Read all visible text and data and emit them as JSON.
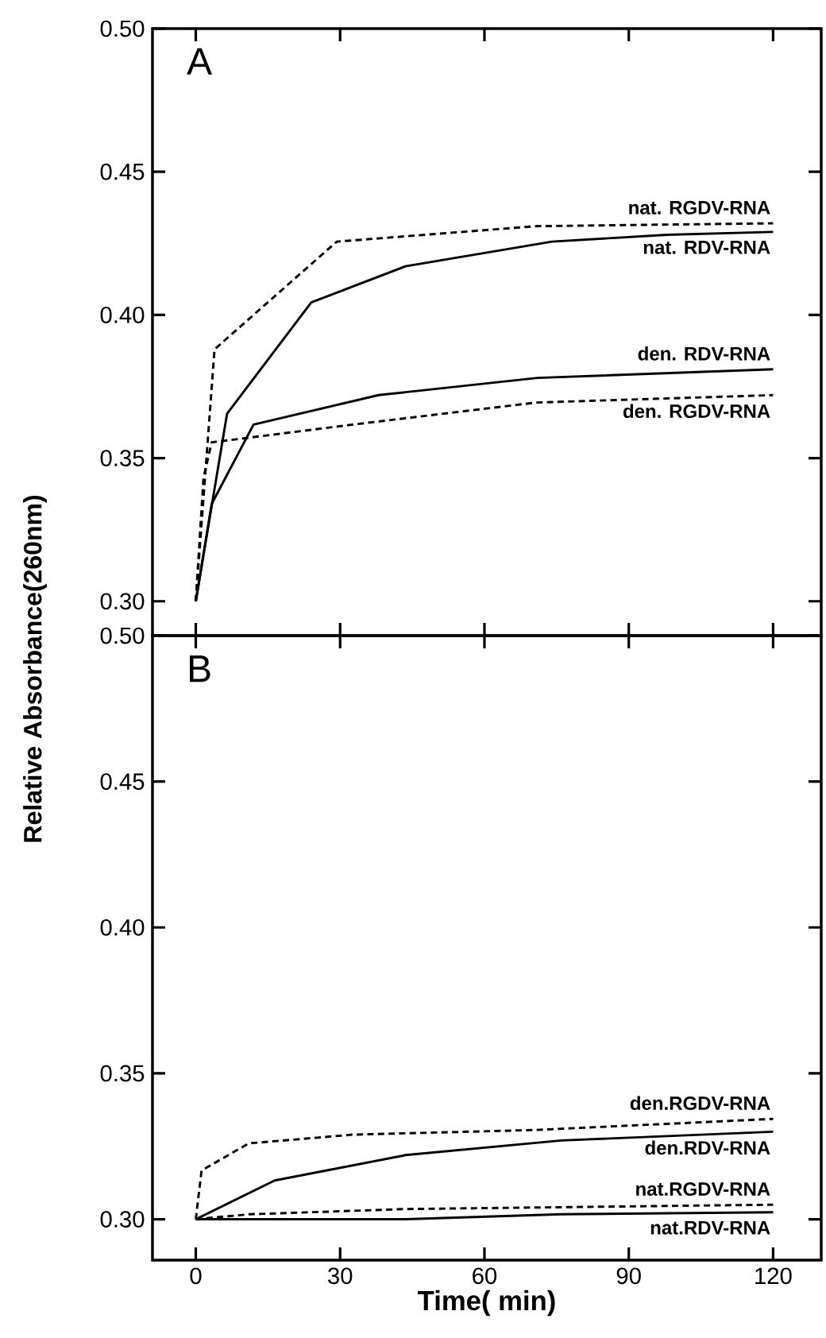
{
  "chart_data": [
    {
      "type": "line",
      "ylabel": "Relative Absorbance(260nm)",
      "annotations": [
        "A"
      ],
      "xlim": [
        -9,
        130
      ],
      "ylim": [
        0.288,
        0.5
      ],
      "xticks": [
        0,
        30,
        60,
        90,
        120
      ],
      "yticks": [
        {
          "value": 0.3,
          "label": "0.30"
        },
        {
          "value": 0.35,
          "label": "0.35"
        },
        {
          "value": 0.4,
          "label": "0.40"
        },
        {
          "value": 0.45,
          "label": "0.45"
        },
        {
          "value": 0.5,
          "label": "0.50"
        }
      ],
      "tick_labels": "y",
      "grid": false,
      "series": [
        {
          "name": "nat. RGDV-RNA",
          "color": "#000000",
          "line_style": "dashed",
          "x": [
            0,
            3.9,
            29.3,
            70.7,
            120
          ],
          "values": [
            0.3,
            0.388,
            0.4256,
            0.431,
            0.432
          ]
        },
        {
          "name": "nat. RDV-RNA",
          "color": "#000000",
          "line_style": "solid",
          "x": [
            0,
            6.5,
            24,
            43.6,
            74,
            98,
            120
          ],
          "values": [
            0.3,
            0.3655,
            0.4044,
            0.417,
            0.4256,
            0.428,
            0.429
          ]
        },
        {
          "name": "den. RDV-RNA",
          "color": "#000000",
          "line_style": "solid",
          "x": [
            0,
            3.3,
            12,
            38,
            71,
            120
          ],
          "values": [
            0.3,
            0.334,
            0.3617,
            0.372,
            0.378,
            0.381
          ]
        },
        {
          "name": "den. RGDV-RNA",
          "color": "#000000",
          "line_style": "dashed",
          "x": [
            0,
            1.6,
            3.3,
            32.6,
            70.7,
            120
          ],
          "values": [
            0.3,
            0.343,
            0.3555,
            0.3617,
            0.3694,
            0.372
          ]
        }
      ]
    },
    {
      "type": "line",
      "xlabel": "Time( min)",
      "annotations": [
        "B"
      ],
      "xlim": [
        -9,
        130
      ],
      "ylim": [
        0.286,
        0.5
      ],
      "xticks": [
        0,
        30,
        60,
        90,
        120
      ],
      "yticks": [
        {
          "value": 0.3,
          "label": "0.30"
        },
        {
          "value": 0.35,
          "label": "0.35"
        },
        {
          "value": 0.4,
          "label": "0.40"
        },
        {
          "value": 0.45,
          "label": "0.45"
        },
        {
          "value": 0.5,
          "label": "0.50"
        }
      ],
      "grid": false,
      "series": [
        {
          "name": "den.RGDV-RNA",
          "color": "#000000",
          "line_style": "dashed",
          "x": [
            0,
            1.2,
            11,
            32.6,
            70.7,
            120
          ],
          "values": [
            0.3,
            0.3167,
            0.326,
            0.329,
            0.3306,
            0.3344
          ]
        },
        {
          "name": "den.RDV-RNA",
          "color": "#000000",
          "line_style": "solid",
          "x": [
            0,
            16.4,
            43.6,
            76,
            120
          ],
          "values": [
            0.3,
            0.3133,
            0.322,
            0.327,
            0.33
          ]
        },
        {
          "name": "nat.RGDV-RNA",
          "color": "#000000",
          "line_style": "dashed",
          "x": [
            0,
            11,
            43.6,
            120
          ],
          "values": [
            0.3,
            0.3017,
            0.3035,
            0.305
          ]
        },
        {
          "name": "nat.RDV-RNA",
          "color": "#000000",
          "line_style": "solid",
          "x": [
            0,
            43.6,
            76,
            120
          ],
          "values": [
            0.3,
            0.3,
            0.3017,
            0.3024
          ]
        }
      ]
    }
  ]
}
